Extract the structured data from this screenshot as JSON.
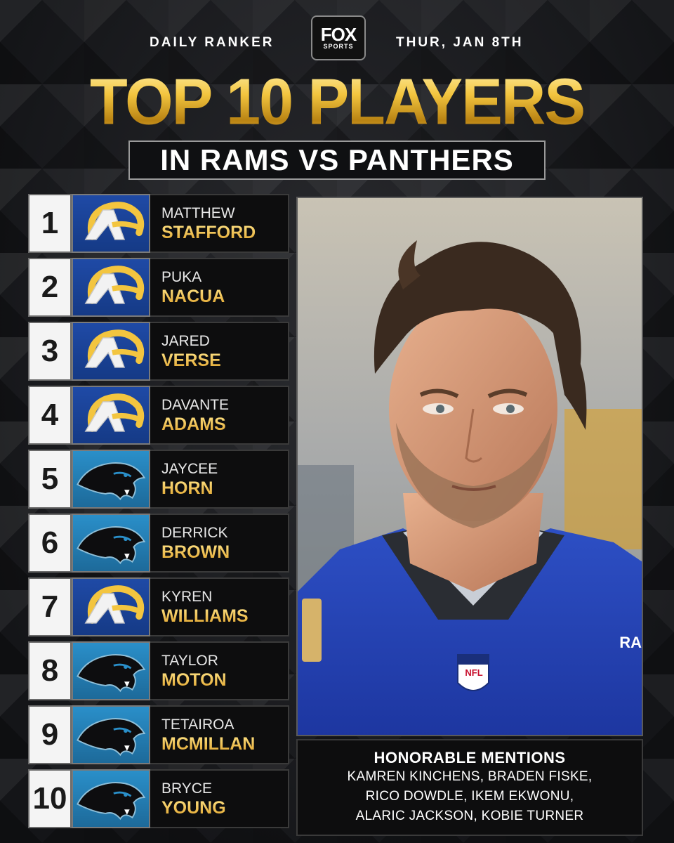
{
  "header": {
    "left_label": "DAILY RANKER",
    "right_label": "THUR, JAN 8TH",
    "logo_top": "FOX",
    "logo_bottom": "SPORTS"
  },
  "title": "TOP 10 PLAYERS",
  "subtitle": "IN RAMS VS PANTHERS",
  "colors": {
    "rams_blue": "#1f4aa6",
    "rams_gold": "#f3c53f",
    "panthers_blue": "#2a8fc9",
    "title_gold": "#f3c53f"
  },
  "players": [
    {
      "rank": "1",
      "first": "MATTHEW",
      "last": "STAFFORD",
      "team_logo": "rams-logo-icon"
    },
    {
      "rank": "2",
      "first": "PUKA",
      "last": "NACUA",
      "team_logo": "rams-logo-icon"
    },
    {
      "rank": "3",
      "first": "JARED",
      "last": "VERSE",
      "team_logo": "rams-logo-icon"
    },
    {
      "rank": "4",
      "first": "DAVANTE",
      "last": "ADAMS",
      "team_logo": "rams-logo-icon"
    },
    {
      "rank": "5",
      "first": "JAYCEE",
      "last": "HORN",
      "team_logo": "panthers-logo-icon"
    },
    {
      "rank": "6",
      "first": "DERRICK",
      "last": "BROWN",
      "team_logo": "panthers-logo-icon"
    },
    {
      "rank": "7",
      "first": "KYREN",
      "last": "WILLIAMS",
      "team_logo": "rams-logo-icon"
    },
    {
      "rank": "8",
      "first": "TAYLOR",
      "last": "MOTON",
      "team_logo": "panthers-logo-icon"
    },
    {
      "rank": "9",
      "first": "TETAIROA",
      "last": "MCMILLAN",
      "team_logo": "panthers-logo-icon"
    },
    {
      "rank": "10",
      "first": "BRYCE",
      "last": "YOUNG",
      "team_logo": "panthers-logo-icon"
    }
  ],
  "photo": {
    "jersey_text": "RA",
    "shield_text": "NFL"
  },
  "honorable": {
    "title": "HONORABLE MENTIONS",
    "lines": [
      "KAMREN KINCHENS, BRADEN FISKE,",
      "RICO DOWDLE, IKEM EKWONU,",
      "ALARIC JACKSON, KOBIE TURNER"
    ]
  }
}
